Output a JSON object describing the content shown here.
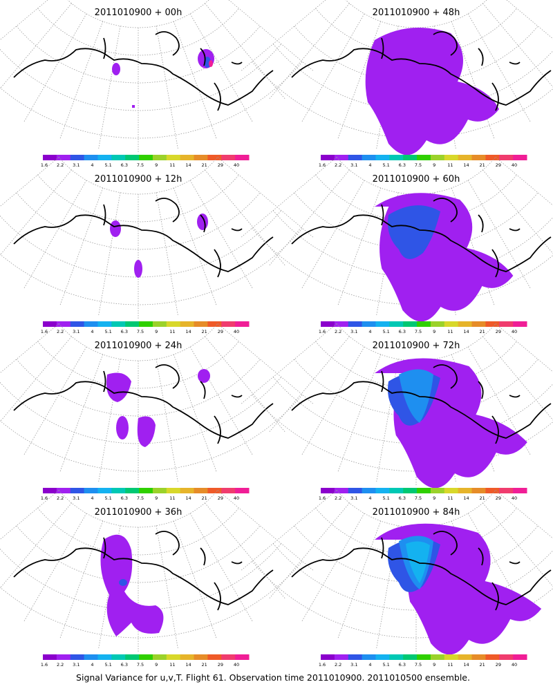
{
  "panels": [
    {
      "title": "2011010900  + 00h",
      "lead": "00h",
      "spread": 0
    },
    {
      "title": "2011010900  + 48h",
      "lead": "48h",
      "spread": 3
    },
    {
      "title": "2011010900  + 12h",
      "lead": "12h",
      "spread": 1
    },
    {
      "title": "2011010900  + 60h",
      "lead": "60h",
      "spread": 4
    },
    {
      "title": "2011010900  + 24h",
      "lead": "24h",
      "spread": 2
    },
    {
      "title": "2011010900  + 72h",
      "lead": "72h",
      "spread": 5
    },
    {
      "title": "2011010900  + 36h",
      "lead": "36h",
      "spread": 2
    },
    {
      "title": "2011010900  + 84h",
      "lead": "84h",
      "spread": 6
    }
  ],
  "colorbar": {
    "labels": [
      "1.6",
      "2.2",
      "3.1",
      "4",
      "5.1",
      "6.3",
      "7.5",
      "9",
      "11",
      "14",
      "21",
      "29",
      "40"
    ],
    "colors": [
      "#8b00cc",
      "#a020f0",
      "#2f55e6",
      "#1e8ff0",
      "#14b2f0",
      "#00c8b4",
      "#00c873",
      "#2fd000",
      "#9bd22a",
      "#d8d82a",
      "#e6b42a",
      "#e68c28",
      "#ef5a28",
      "#f03c6e",
      "#f01e96"
    ]
  },
  "caption": "Signal Variance for u,v,T. Flight 61. Observation time 2011010900. 2011010500 ensemble."
}
